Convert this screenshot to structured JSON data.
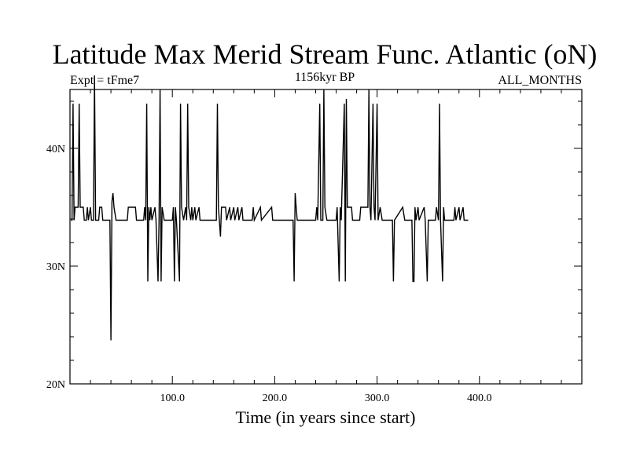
{
  "chart_data": {
    "type": "line",
    "title": "Latitude Max Merid Stream Func. Atlantic (oN)",
    "left_label": "Expt = tFme7",
    "center_label": "1156kyr BP",
    "right_label": "ALL_MONTHS",
    "xlabel": "Time (in years since start)",
    "ylabel": "",
    "xlim": [
      0,
      500
    ],
    "ylim": [
      20,
      45
    ],
    "x_ticks": [
      100,
      200,
      300,
      400
    ],
    "x_tick_labels": [
      "100.0",
      "200.0",
      "300.0",
      "400.0"
    ],
    "y_ticks": [
      20,
      30,
      40
    ],
    "y_tick_labels": [
      "20N",
      "30N",
      "40N"
    ],
    "x_minor_step": 20,
    "y_minor_step": 2,
    "grid": false,
    "line_color": "#000000",
    "series": [
      {
        "points": [
          [
            1,
            33.9
          ],
          [
            2,
            33.9
          ],
          [
            3,
            43.8
          ],
          [
            4,
            33.9
          ],
          [
            5,
            35.0
          ],
          [
            8,
            35.0
          ],
          [
            9,
            43.8
          ],
          [
            10,
            35.0
          ],
          [
            13,
            35.0
          ],
          [
            14,
            33.9
          ],
          [
            16,
            33.9
          ],
          [
            17,
            35.0
          ],
          [
            18,
            33.9
          ],
          [
            20,
            35.0
          ],
          [
            21,
            33.9
          ],
          [
            23,
            33.9
          ],
          [
            24,
            46.2
          ],
          [
            25,
            33.9
          ],
          [
            28,
            33.9
          ],
          [
            29,
            35.0
          ],
          [
            31,
            35.0
          ],
          [
            32,
            33.9
          ],
          [
            38,
            33.9
          ],
          [
            39,
            33.9
          ],
          [
            40,
            23.7
          ],
          [
            41,
            35.5
          ],
          [
            42,
            36.2
          ],
          [
            43,
            35.0
          ],
          [
            45,
            33.9
          ],
          [
            56,
            33.9
          ],
          [
            57,
            35.0
          ],
          [
            64,
            35.0
          ],
          [
            65,
            33.9
          ],
          [
            72,
            33.9
          ],
          [
            73,
            35.0
          ],
          [
            74,
            33.9
          ],
          [
            75,
            43.8
          ],
          [
            76,
            28.7
          ],
          [
            77,
            35.0
          ],
          [
            78,
            33.9
          ],
          [
            79,
            35.0
          ],
          [
            80,
            33.9
          ],
          [
            83,
            35.0
          ],
          [
            84,
            33.9
          ],
          [
            86,
            28.7
          ],
          [
            87,
            33.9
          ],
          [
            88,
            45.0
          ],
          [
            89,
            28.7
          ],
          [
            90,
            35.0
          ],
          [
            92,
            33.9
          ],
          [
            100,
            33.9
          ],
          [
            101,
            35.0
          ],
          [
            102,
            28.7
          ],
          [
            103,
            35.0
          ],
          [
            104,
            33.9
          ],
          [
            107,
            28.7
          ],
          [
            108,
            43.8
          ],
          [
            109,
            35.0
          ],
          [
            111,
            33.9
          ],
          [
            113,
            35.0
          ],
          [
            114,
            33.9
          ],
          [
            115,
            43.8
          ],
          [
            116,
            35.0
          ],
          [
            118,
            33.9
          ],
          [
            119,
            35.0
          ],
          [
            120,
            33.9
          ],
          [
            122,
            35.0
          ],
          [
            123,
            33.9
          ],
          [
            126,
            35.0
          ],
          [
            127,
            33.9
          ],
          [
            143,
            33.9
          ],
          [
            144,
            43.8
          ],
          [
            145,
            35.0
          ],
          [
            147,
            32.5
          ],
          [
            148,
            35.0
          ],
          [
            152,
            35.0
          ],
          [
            153,
            33.9
          ],
          [
            156,
            35.0
          ],
          [
            157,
            33.9
          ],
          [
            160,
            35.0
          ],
          [
            161,
            33.9
          ],
          [
            164,
            35.0
          ],
          [
            165,
            33.9
          ],
          [
            168,
            35.0
          ],
          [
            169,
            33.9
          ],
          [
            178,
            33.9
          ],
          [
            179,
            35.0
          ],
          [
            180,
            33.9
          ],
          [
            186,
            35.0
          ],
          [
            187,
            33.9
          ],
          [
            197,
            35.0
          ],
          [
            198,
            33.9
          ],
          [
            218,
            33.9
          ],
          [
            219,
            28.7
          ],
          [
            220,
            36.2
          ],
          [
            221,
            35.0
          ],
          [
            222,
            33.9
          ],
          [
            240,
            33.9
          ],
          [
            241,
            35.0
          ],
          [
            242,
            33.9
          ],
          [
            244,
            43.8
          ],
          [
            245,
            33.9
          ],
          [
            247,
            33.9
          ],
          [
            248,
            45.0
          ],
          [
            249,
            35.0
          ],
          [
            251,
            33.9
          ],
          [
            260,
            33.9
          ],
          [
            261,
            35.0
          ],
          [
            263,
            28.7
          ],
          [
            264,
            35.0
          ],
          [
            265,
            33.9
          ],
          [
            268,
            43.8
          ],
          [
            269,
            28.7
          ],
          [
            270,
            44.2
          ],
          [
            271,
            35.0
          ],
          [
            275,
            35.0
          ],
          [
            276,
            33.9
          ],
          [
            283,
            33.9
          ],
          [
            284,
            35.0
          ],
          [
            291,
            35.0
          ],
          [
            292,
            45.0
          ],
          [
            293,
            35.0
          ],
          [
            294,
            33.9
          ],
          [
            296,
            43.8
          ],
          [
            297,
            35.0
          ],
          [
            298,
            33.9
          ],
          [
            300,
            43.8
          ],
          [
            301,
            33.9
          ],
          [
            303,
            35.0
          ],
          [
            305,
            33.9
          ],
          [
            315,
            33.9
          ],
          [
            316,
            28.7
          ],
          [
            317,
            33.9
          ],
          [
            325,
            35.0
          ],
          [
            327,
            33.9
          ],
          [
            334,
            33.9
          ],
          [
            335,
            28.7
          ],
          [
            336,
            28.7
          ],
          [
            337,
            35.0
          ],
          [
            338,
            33.9
          ],
          [
            340,
            35.0
          ],
          [
            341,
            33.9
          ],
          [
            346,
            35.0
          ],
          [
            347,
            33.9
          ],
          [
            349,
            28.7
          ],
          [
            350,
            33.9
          ],
          [
            357,
            33.9
          ],
          [
            358,
            35.0
          ],
          [
            360,
            33.9
          ],
          [
            361,
            43.8
          ],
          [
            362,
            33.9
          ],
          [
            364,
            28.7
          ],
          [
            365,
            35.0
          ],
          [
            366,
            33.9
          ],
          [
            375,
            33.9
          ],
          [
            376,
            35.0
          ],
          [
            377,
            33.9
          ],
          [
            380,
            35.0
          ],
          [
            381,
            33.9
          ],
          [
            384,
            35.0
          ],
          [
            385,
            33.9
          ],
          [
            389,
            33.9
          ]
        ]
      }
    ]
  }
}
